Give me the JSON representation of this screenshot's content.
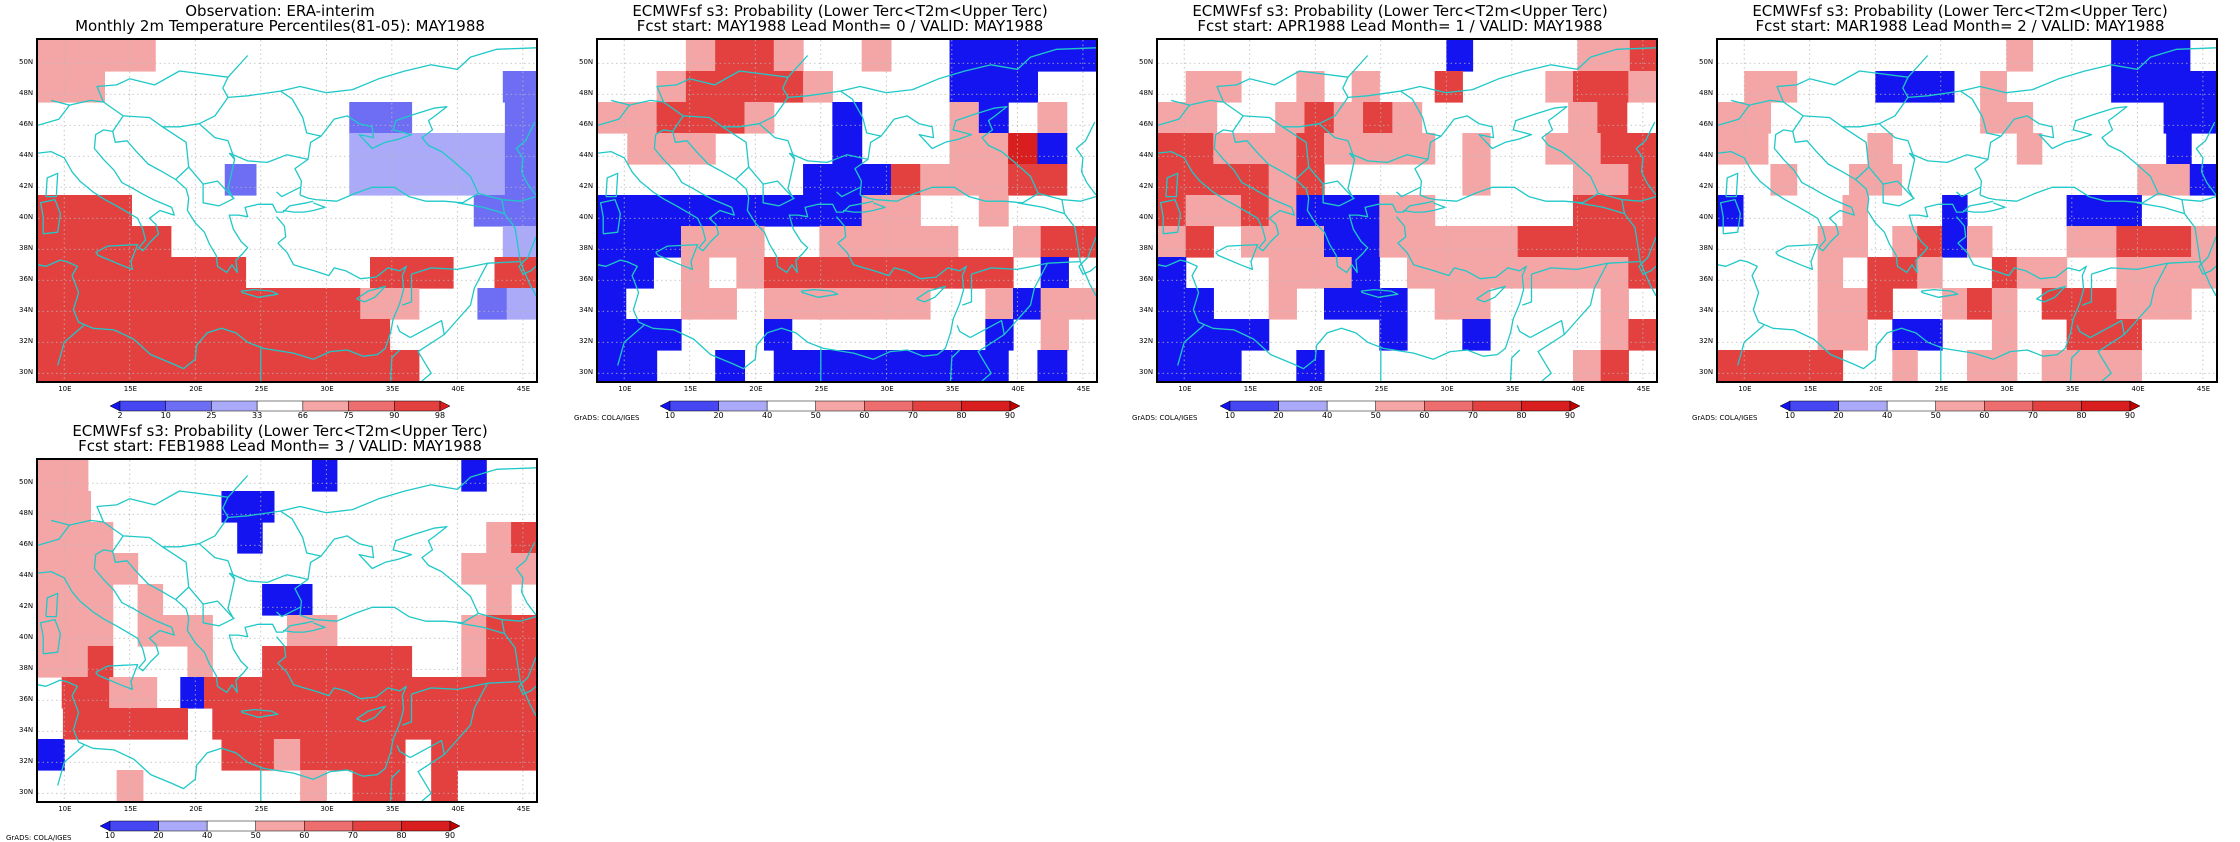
{
  "colors": {
    "blue_dark": "#1414f0",
    "blue_mid": "#6e6ef5",
    "blue_light": "#aaaaf8",
    "red_light": "#f4a6a6",
    "red_mid": "#ec6e6e",
    "red_strong": "#e34040",
    "red_dark": "#d81e1e",
    "coast": "#20c8c8",
    "grid": "#b8b8b8"
  },
  "axes": {
    "lat_labels": [
      "50N",
      "48N",
      "46N",
      "44N",
      "42N",
      "40N",
      "38N",
      "36N",
      "34N",
      "32N",
      "30N"
    ],
    "lon_labels": [
      "10E",
      "15E",
      "20E",
      "25E",
      "30E",
      "35E",
      "40E",
      "45E"
    ]
  },
  "grads_label": "GrADS: COLA/IGES",
  "panels": [
    {
      "id": "obs",
      "title1": "Observation: ERA-interim",
      "title2": "Monthly 2m Temperature Percentiles(81-05): MAY1988",
      "colorbar_labels": [
        "2",
        "10",
        "25",
        "33",
        "66",
        "75",
        "90",
        "98"
      ],
      "grid": [
        "rrrr.............",
        "rr............B",
        "..........BB...B",
        "..........bbbbbB",
        "......B...bbbbbB",
        "RRR...........BB",
        "RRRR..........b",
        "RRRRR...RR.R",
        "RRRRRRRRRRRrr..Bb",
        "RRRRRRRRRRRR.....",
        "RRRRRRRRRRRRR...."
      ]
    },
    {
      "id": "fc0",
      "title1": "ECMWFsf s3: Probability (Lower Terc<T2m<Upper Terc)",
      "title2": "Fcst start: MAY1988   Lead Month= 0 / VALID: MAY1988",
      "colorbar_labels": [
        "10",
        "20",
        "40",
        "50",
        "60",
        "70",
        "80",
        "90"
      ],
      "grid": [
        "...rRRr..r..DDDDD",
        "..rRRRRr....DDD..",
        "rrRRRr..D...rD.r.",
        ".rrr....D...rrXD.",
        ".......DDDRrrrRR.",
        "DDDDDDDDDrr..r...",
        "DDDrrr..rrrrr..rRR",
        "DD.r.rRRRRRRRRR.D.",
        "D..rr.rrrrrr..rDrr",
        "DDD...D.......D.r.",
        "DD..D.DDDDDDDD.D."
      ]
    },
    {
      "id": "fc1",
      "title1": "ECMWFsf s3: Probability (Lower Terc<T2m<Upper Terc)",
      "title2": "Fcst start: APR1988   Lead Month= 1 / VALID: MAY1988",
      "colorbar_labels": [
        "10",
        "20",
        "40",
        "50",
        "60",
        "70",
        "80",
        "90"
      ],
      "grid": [
        "...........D....rrR",
        ".rr..r.r..R...rRRr",
        "rr..rRrRr.....rR.",
        "RRrrrRrrrr.r..rrRR",
        "RRRRrR.....r...rrR",
        "RrrRrDDDrr.....RRR",
        "rR.rrrDDrrrrrRRRRR",
        "D...rrrD.rrrrrrrrR",
        "DD..r.DDD.rr....r.",
        "DDDD....D..D....rR",
        "DDD..D.........rR."
      ]
    },
    {
      "id": "fc2",
      "title1": "ECMWFsf s3: Probability (Lower Terc<T2m<Upper Terc)",
      "title2": "Fcst start: MAR1988   Lead Month= 2 / VALID: MAY1988",
      "colorbar_labels": [
        "10",
        "20",
        "40",
        "50",
        "60",
        "70",
        "80",
        "90"
      ],
      "grid": [
        "...........r...DDD.",
        ".rr...DDD.r....DDDD",
        "rr........rr.....DD",
        "rr....r.....r.....D.",
        "..r..rr.........rrD",
        "D....r...D....DDD...",
        "....rr.rRDr...rrRRRr",
        "....r.RRr..Rrr..rrrr",
        "....rrR..rRr.RRRrrr.",
        "....rr.DD..r..RRR...",
        "RRRRR..r..rr.rrrr..."
      ]
    },
    {
      "id": "fc3",
      "title1": "ECMWFsf s3: Probability (Lower Terc<T2m<Upper Terc)",
      "title2": "Fcst start: FEB1988   Lead Month= 3 / VALID: MAY1988",
      "colorbar_labels": [
        "10",
        "20",
        "40",
        "50",
        "60",
        "70",
        "80",
        "90"
      ],
      "grid": [
        "rr.........D.....D..",
        "rr.....DD..........",
        "rrr.....D.........rR",
        "rrrr.............rrr",
        "rrr.r....DD.......r.",
        "rrr.rrr...rr.....rRR",
        "rrR...r..RRRRRR..rRR",
        ".RRrr.DRRRRRRRRRRRRRR",
        ".RRRRR.RRRRRRRRRRRRR",
        "D......RRrRRRR.RRRR",
        "...r......r.RR.R..."
      ]
    }
  ]
}
